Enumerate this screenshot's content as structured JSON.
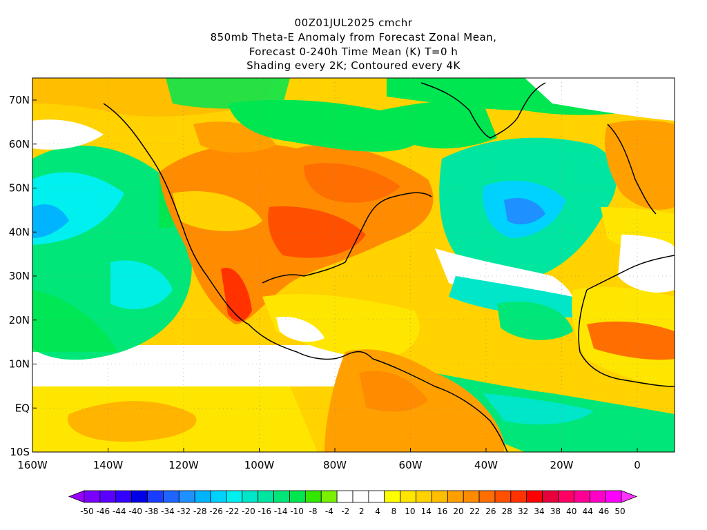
{
  "header": {
    "line1": "00Z01JUL2025 cmchr",
    "line2": "850mb Theta-E Anomaly from Forecast Zonal Mean,",
    "line3": "Forecast 0-240h Time Mean (K) T=0 h",
    "line4": "Shading every 2K; Contoured every 4K"
  },
  "lat_labels": [
    "70N",
    "60N",
    "50N",
    "40N",
    "30N",
    "20N",
    "10N",
    "EQ",
    "10S"
  ],
  "lon_labels": [
    "160W",
    "140W",
    "120W",
    "100W",
    "80W",
    "60W",
    "40W",
    "20W",
    "0"
  ],
  "colorbar": {
    "labels": [
      "-50",
      "-46",
      "-44",
      "-40",
      "-38",
      "-34",
      "-32",
      "-28",
      "-26",
      "-22",
      "-20",
      "-16",
      "-14",
      "-10",
      "-8",
      "-4",
      "-2",
      "2",
      "4",
      "8",
      "10",
      "14",
      "16",
      "20",
      "22",
      "26",
      "28",
      "32",
      "34",
      "38",
      "40",
      "44",
      "46",
      "50"
    ],
    "colors": [
      "#9b00ff",
      "#7a00ff",
      "#5a00ff",
      "#3300ff",
      "#0000e8",
      "#1a3cff",
      "#1e64ff",
      "#1e90ff",
      "#00b4ff",
      "#00d2ff",
      "#00f0f0",
      "#00e6c8",
      "#00e6a0",
      "#00e678",
      "#00e650",
      "#32e600",
      "#78f000",
      "#ffffff",
      "#ffffff",
      "#ffffff",
      "#ffff00",
      "#ffe600",
      "#ffd200",
      "#ffbe00",
      "#ffa000",
      "#ff8c00",
      "#ff6e00",
      "#ff5000",
      "#ff3200",
      "#ff0000",
      "#e6003c",
      "#ff0064",
      "#ff0096",
      "#ff00c8",
      "#ff00ff",
      "#ff32ff"
    ]
  }
}
